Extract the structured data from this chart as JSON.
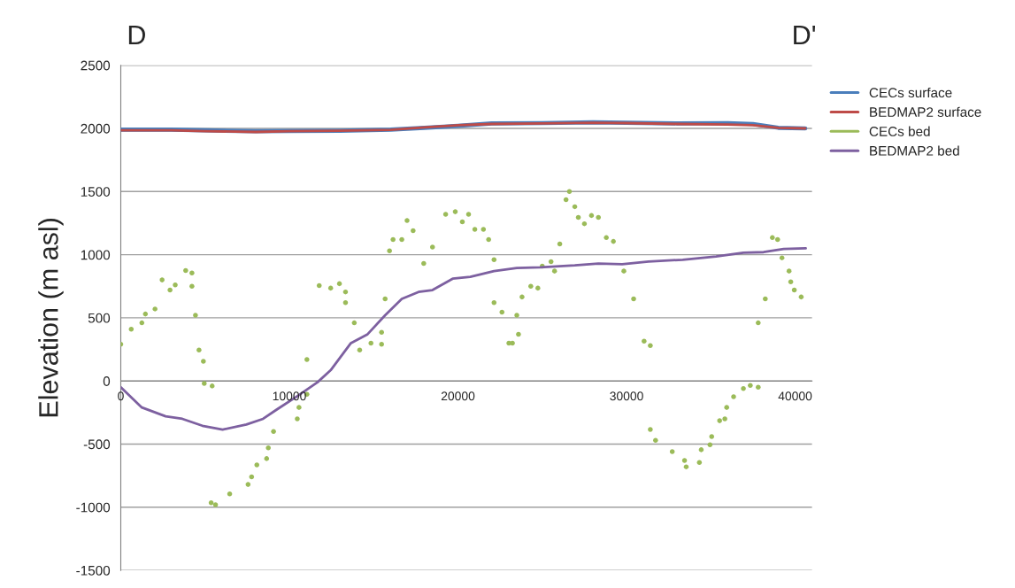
{
  "chart_data": {
    "type": "line",
    "ylabel": "Elevation (m asl)",
    "annotations": [
      "D",
      "D'"
    ],
    "xlim": [
      0,
      41000
    ],
    "xticks": [
      0,
      10000,
      20000,
      30000,
      40000
    ],
    "ylim": [
      -1500,
      2500
    ],
    "yticks": [
      -1500,
      -1000,
      -500,
      0,
      500,
      1000,
      1500,
      2000,
      2500
    ],
    "grid": "y",
    "legend": "right",
    "marker": "none",
    "line_style": "solid",
    "series": [
      {
        "name": "CECs surface",
        "color": "#4a7ebb",
        "x": [
          0,
          3000,
          5000,
          8000,
          10000,
          13000,
          16000,
          18000,
          20000,
          22000,
          25000,
          28000,
          30000,
          33000,
          36000,
          37500,
          39000,
          40600
        ],
        "values": [
          1990,
          1990,
          1985,
          1978,
          1980,
          1982,
          1990,
          2005,
          2020,
          2040,
          2042,
          2048,
          2045,
          2040,
          2042,
          2035,
          2005,
          2000
        ]
      },
      {
        "name": "BEDMAP2 surface",
        "color": "#be4b48",
        "x": [
          0,
          3000,
          5000,
          8000,
          10000,
          13000,
          16000,
          18000,
          20000,
          22000,
          25000,
          28000,
          30000,
          33000,
          36000,
          37500,
          39000,
          40600
        ],
        "values": [
          1985,
          1985,
          1978,
          1972,
          1978,
          1982,
          1988,
          2008,
          2025,
          2035,
          2040,
          2045,
          2042,
          2035,
          2030,
          2025,
          2005,
          2000
        ]
      },
      {
        "name": "CECs bed",
        "type": "scatter",
        "color": "#9bbb59",
        "x": [
          0,
          620,
          1250,
          1460,
          2030,
          2450,
          2920,
          3230,
          3850,
          4220,
          4220,
          4430,
          4640,
          4900,
          4950,
          5420,
          5360,
          5620,
          6460,
          7550,
          7760,
          8070,
          8650,
          8750,
          9060,
          10470,
          10570,
          11040,
          11040,
          11770,
          12450,
          12970,
          13330,
          13330,
          13850,
          14170,
          14840,
          15470,
          15470,
          15680,
          15940,
          16150,
          16670,
          16980,
          17340,
          17970,
          18490,
          19270,
          19840,
          20260,
          20630,
          21000,
          21510,
          21820,
          22140,
          22140,
          22610,
          23020,
          23230,
          23590,
          23490,
          23800,
          24320,
          24740,
          25000,
          25520,
          25730,
          26040,
          26410,
          26610,
          26930,
          27140,
          27500,
          27920,
          28330,
          28800,
          29220,
          29840,
          30420,
          31040,
          31410,
          31410,
          31720,
          32710,
          33440,
          33540,
          34320,
          34430,
          34950,
          35050,
          35520,
          35830,
          35940,
          36350,
          36930,
          37340,
          37810,
          37810,
          38230,
          38650,
          38960,
          39220,
          39640,
          39740,
          39950,
          40360
        ],
        "values": [
          290,
          410,
          460,
          530,
          570,
          800,
          720,
          760,
          875,
          855,
          750,
          520,
          245,
          155,
          -20,
          -40,
          -965,
          -980,
          -895,
          -820,
          -760,
          -665,
          -615,
          -530,
          -400,
          -300,
          -210,
          -105,
          170,
          755,
          735,
          770,
          705,
          620,
          460,
          245,
          300,
          290,
          385,
          650,
          1030,
          1120,
          1120,
          1270,
          1190,
          930,
          1060,
          1320,
          1340,
          1260,
          1320,
          1200,
          1200,
          1120,
          960,
          620,
          545,
          300,
          300,
          370,
          520,
          665,
          750,
          735,
          910,
          945,
          870,
          1085,
          1435,
          1500,
          1380,
          1295,
          1245,
          1310,
          1295,
          1135,
          1105,
          870,
          650,
          315,
          280,
          -385,
          -470,
          -560,
          -630,
          -680,
          -645,
          -545,
          -505,
          -440,
          -315,
          -300,
          -210,
          -125,
          -60,
          -35,
          -50,
          460,
          650,
          1135,
          1120,
          975,
          870,
          785,
          720,
          665
        ]
      },
      {
        "name": "BEDMAP2 bed",
        "color": "#7d60a0",
        "x": [
          0,
          1250,
          2660,
          3650,
          4840,
          6040,
          7450,
          8440,
          9270,
          10470,
          11670,
          12450,
          13650,
          14640,
          15680,
          16670,
          17660,
          18490,
          19690,
          20730,
          22140,
          23490,
          24900,
          26930,
          28330,
          29740,
          31300,
          33330,
          35310,
          36930,
          38130,
          39320,
          40630
        ],
        "values": [
          -50,
          -210,
          -280,
          -300,
          -355,
          -385,
          -345,
          -300,
          -225,
          -120,
          -10,
          85,
          300,
          370,
          520,
          650,
          705,
          720,
          810,
          825,
          870,
          895,
          900,
          915,
          930,
          925,
          945,
          960,
          985,
          1015,
          1020,
          1045,
          1050
        ]
      }
    ]
  }
}
